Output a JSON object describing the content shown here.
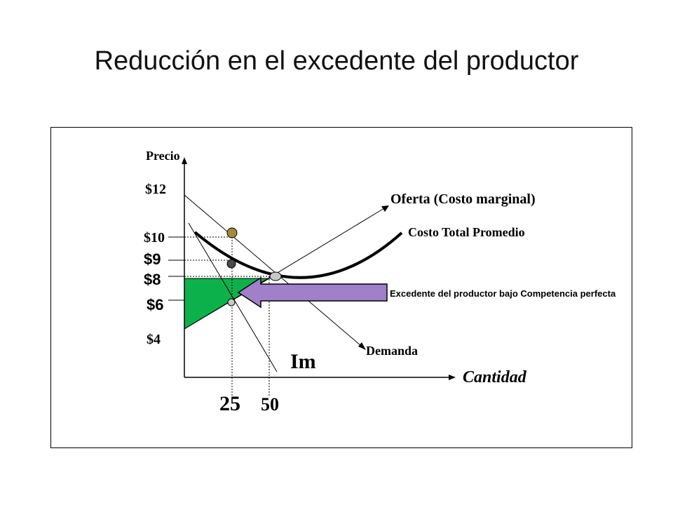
{
  "title": "Reducción en el excedente del productor",
  "chart_data": {
    "type": "line",
    "ylabel": "Precio",
    "xlabel": "Cantidad",
    "price_ticks": [
      "$12",
      "$10",
      "$9",
      "$8",
      "$6",
      "$4"
    ],
    "quantity_ticks": [
      "25",
      "50"
    ],
    "series_labels": {
      "supply": "Oferta (Costo marginal)",
      "atc": "Costo Total Promedio",
      "demand": "Demanda",
      "mr": "Im"
    },
    "annotation": "Excedente del productor bajo Competencia perfecta",
    "colors": {
      "surplus_fill": "#0db14b",
      "arrow_fill": "#a080c8",
      "point_olive": "#a08c3c",
      "point_dark": "#4a4a4a",
      "point_grey": "#c8c8c8"
    }
  }
}
